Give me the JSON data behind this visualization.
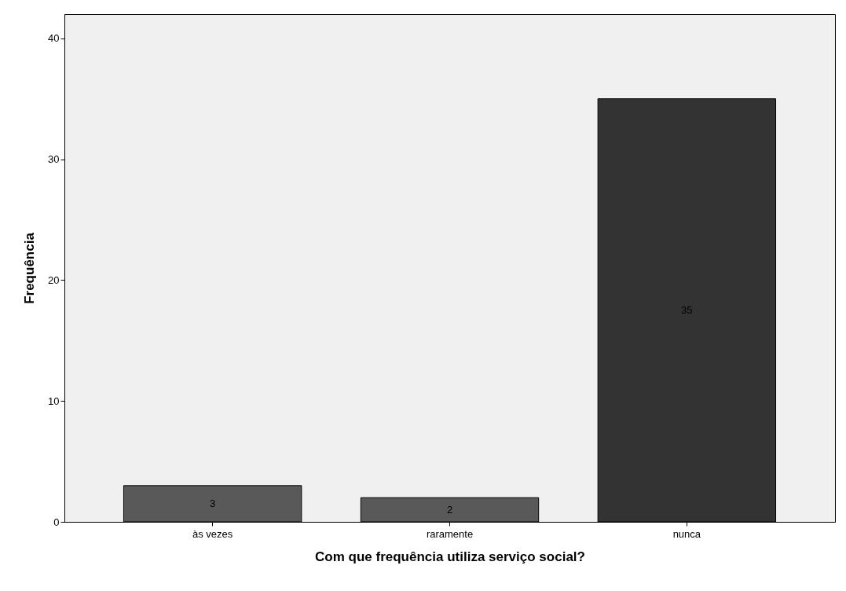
{
  "chart_data": {
    "type": "bar",
    "xlabel": "Com que frequência utiliza serviço social?",
    "ylabel": "Frequência",
    "categories": [
      "às vezes",
      "raramente",
      "nunca"
    ],
    "values": [
      3,
      2,
      35
    ],
    "colors": [
      "#595959",
      "#595959",
      "#333333"
    ],
    "ylim": [
      0,
      42
    ],
    "yticks": [
      0,
      10,
      20,
      30,
      40
    ],
    "data_labels": true,
    "grid": false
  }
}
